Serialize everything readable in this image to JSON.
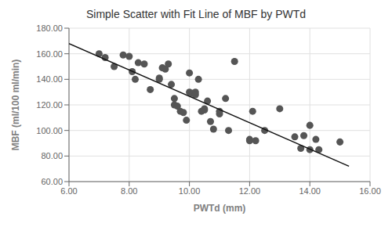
{
  "chart_data": {
    "type": "scatter",
    "title": "Simple Scatter with Fit Line of MBF by PWTd",
    "xlabel": "PWTd (mm)",
    "ylabel": "MBF (ml/100 ml/min)",
    "xlim": [
      6.0,
      16.0
    ],
    "ylim": [
      60.0,
      180.0
    ],
    "xticks": [
      {
        "value": 6.0,
        "label": "6.00"
      },
      {
        "value": 8.0,
        "label": "8.00"
      },
      {
        "value": 10.0,
        "label": "10.00"
      },
      {
        "value": 12.0,
        "label": "12.00"
      },
      {
        "value": 14.0,
        "label": "14.00"
      },
      {
        "value": 16.0,
        "label": "16.00"
      }
    ],
    "yticks": [
      {
        "value": 60.0,
        "label": "60.00"
      },
      {
        "value": 80.0,
        "label": "80.00"
      },
      {
        "value": 100.0,
        "label": "100.00"
      },
      {
        "value": 120.0,
        "label": "120.00"
      },
      {
        "value": 140.0,
        "label": "140.00"
      },
      {
        "value": 160.0,
        "label": "160.00"
      },
      {
        "value": 180.0,
        "label": "180.00"
      }
    ],
    "grid": true,
    "series": [
      {
        "type": "scatter",
        "color": "#555555",
        "x": [
          7.0,
          7.2,
          7.5,
          7.8,
          8.0,
          8.1,
          8.2,
          8.3,
          8.5,
          8.7,
          9.0,
          9.0,
          9.1,
          9.2,
          9.3,
          9.4,
          9.5,
          9.5,
          9.6,
          9.7,
          9.8,
          9.9,
          10.0,
          10.0,
          10.1,
          10.2,
          10.2,
          10.3,
          10.4,
          10.5,
          10.5,
          10.6,
          10.7,
          10.8,
          11.0,
          11.0,
          11.2,
          11.3,
          11.5,
          12.0,
          12.0,
          12.1,
          12.2,
          12.5,
          13.0,
          13.5,
          13.7,
          13.8,
          14.0,
          14.0,
          14.2,
          14.3,
          15.0
        ],
        "values": [
          160.0,
          157.0,
          150.0,
          159.0,
          158.0,
          146.0,
          140.0,
          153.0,
          152.0,
          132.0,
          140.0,
          141.0,
          149.0,
          148.0,
          152.0,
          136.0,
          125.0,
          120.0,
          119.0,
          115.0,
          114.0,
          108.0,
          130.0,
          145.0,
          129.0,
          130.0,
          128.0,
          140.0,
          115.0,
          117.0,
          116.0,
          123.0,
          107.0,
          101.0,
          115.0,
          113.0,
          125.0,
          100.0,
          154.0,
          92.0,
          93.0,
          115.0,
          92.0,
          100.0,
          117.0,
          95.0,
          86.0,
          96.0,
          104.0,
          85.0,
          93.0,
          85.0,
          91.0
        ]
      },
      {
        "type": "line",
        "color": "#111111",
        "x": [
          6.0,
          15.3
        ],
        "values": [
          168.0,
          72.0
        ]
      }
    ]
  }
}
